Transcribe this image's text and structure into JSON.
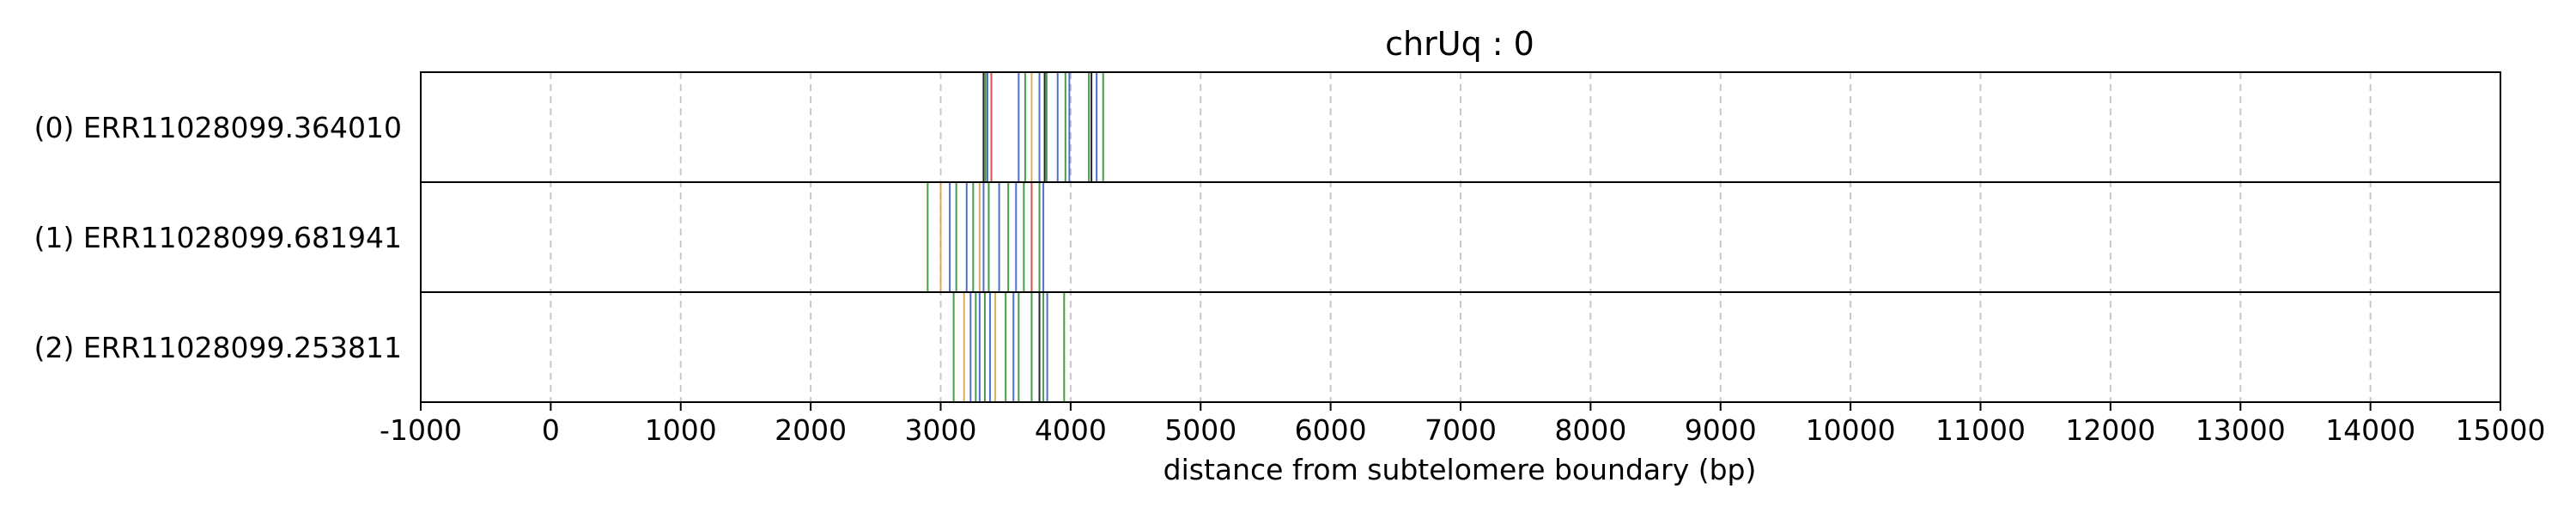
{
  "chart_data": {
    "type": "event-track",
    "title": "chrUq : 0",
    "xlabel": "distance from subtelomere boundary (bp)",
    "ylabel": "",
    "xlim": [
      -1000,
      15000
    ],
    "x_ticks": [
      -1000,
      0,
      1000,
      2000,
      3000,
      4000,
      5000,
      6000,
      7000,
      8000,
      9000,
      10000,
      11000,
      12000,
      13000,
      14000,
      15000
    ],
    "grid": "vertical dashed",
    "legend": "none",
    "colors": {
      "green": "#2a8a2a",
      "blue": "#3355cc",
      "red": "#cc3333",
      "orange": "#d9a040",
      "black": "#000000",
      "grid": "#c8c8c8"
    },
    "tracks": [
      {
        "label": "(0) ERR11028099.364010",
        "events": [
          {
            "x": 3330,
            "color": "black"
          },
          {
            "x": 3345,
            "color": "green"
          },
          {
            "x": 3360,
            "color": "blue"
          },
          {
            "x": 3390,
            "color": "red"
          },
          {
            "x": 3600,
            "color": "blue"
          },
          {
            "x": 3650,
            "color": "green"
          },
          {
            "x": 3700,
            "color": "orange"
          },
          {
            "x": 3760,
            "color": "blue"
          },
          {
            "x": 3800,
            "color": "black"
          },
          {
            "x": 3815,
            "color": "green"
          },
          {
            "x": 3900,
            "color": "blue"
          },
          {
            "x": 3960,
            "color": "green"
          },
          {
            "x": 3990,
            "color": "blue"
          },
          {
            "x": 4140,
            "color": "green"
          },
          {
            "x": 4160,
            "color": "black"
          },
          {
            "x": 4200,
            "color": "blue"
          },
          {
            "x": 4250,
            "color": "green"
          }
        ]
      },
      {
        "label": "(1) ERR11028099.681941",
        "events": [
          {
            "x": 2900,
            "color": "green"
          },
          {
            "x": 3000,
            "color": "orange"
          },
          {
            "x": 3070,
            "color": "blue"
          },
          {
            "x": 3120,
            "color": "green"
          },
          {
            "x": 3200,
            "color": "blue"
          },
          {
            "x": 3250,
            "color": "green"
          },
          {
            "x": 3300,
            "color": "orange"
          },
          {
            "x": 3330,
            "color": "blue"
          },
          {
            "x": 3370,
            "color": "green"
          },
          {
            "x": 3450,
            "color": "blue"
          },
          {
            "x": 3520,
            "color": "green"
          },
          {
            "x": 3580,
            "color": "blue"
          },
          {
            "x": 3640,
            "color": "green"
          },
          {
            "x": 3700,
            "color": "red"
          },
          {
            "x": 3760,
            "color": "green"
          },
          {
            "x": 3790,
            "color": "blue"
          }
        ]
      },
      {
        "label": "(2) ERR11028099.253811",
        "events": [
          {
            "x": 3100,
            "color": "green"
          },
          {
            "x": 3180,
            "color": "orange"
          },
          {
            "x": 3230,
            "color": "blue"
          },
          {
            "x": 3270,
            "color": "green"
          },
          {
            "x": 3300,
            "color": "blue"
          },
          {
            "x": 3340,
            "color": "green"
          },
          {
            "x": 3380,
            "color": "blue"
          },
          {
            "x": 3420,
            "color": "orange"
          },
          {
            "x": 3500,
            "color": "green"
          },
          {
            "x": 3560,
            "color": "blue"
          },
          {
            "x": 3600,
            "color": "green"
          },
          {
            "x": 3700,
            "color": "green"
          },
          {
            "x": 3760,
            "color": "black"
          },
          {
            "x": 3790,
            "color": "green"
          },
          {
            "x": 3820,
            "color": "blue"
          },
          {
            "x": 3950,
            "color": "green"
          }
        ]
      }
    ]
  }
}
